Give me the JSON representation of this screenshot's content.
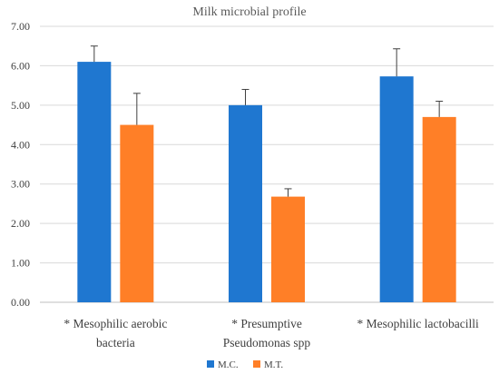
{
  "chart_data": {
    "type": "bar",
    "title": "Milk microbial profile",
    "categories": [
      [
        "* Mesophilic aerobic",
        "bacteria"
      ],
      [
        "* Presumptive",
        "Pseudomonas spp"
      ],
      [
        "* Mesophilic lactobacilli"
      ]
    ],
    "series": [
      {
        "name": "M.C.",
        "color": "#1f77d0",
        "values": [
          6.1,
          5.0,
          5.73
        ],
        "errors": [
          0.4,
          0.4,
          0.7
        ]
      },
      {
        "name": "M.T.",
        "color": "#ff7f27",
        "values": [
          4.5,
          2.68,
          4.7
        ],
        "errors": [
          0.8,
          0.2,
          0.4
        ]
      }
    ],
    "ylim": [
      0,
      7
    ],
    "yticks": [
      "0.00",
      "1.00",
      "2.00",
      "3.00",
      "4.00",
      "5.00",
      "6.00",
      "7.00"
    ],
    "grid": true,
    "legend_position": "bottom"
  }
}
